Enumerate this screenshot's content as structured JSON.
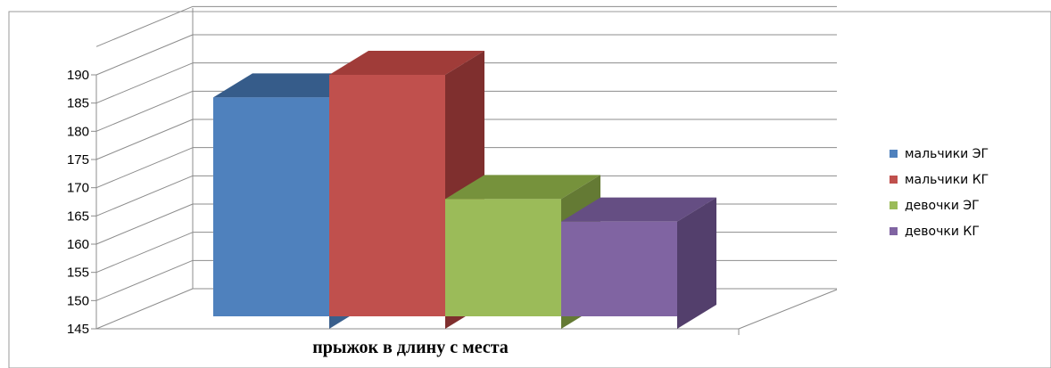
{
  "chart_data": {
    "type": "bar",
    "categories": [
      "прыжок в длину с места"
    ],
    "xlabel": "прыжок в длину с места",
    "ylim": [
      145,
      190
    ],
    "yticks": [
      145,
      150,
      155,
      160,
      165,
      170,
      175,
      180,
      185,
      190
    ],
    "grid": true,
    "legend_position": "right",
    "series": [
      {
        "name": "мальчики ЭГ",
        "values": [
          186
        ],
        "color": "#4F81BD",
        "dark": "#3A5F8C",
        "top": "#365C8A"
      },
      {
        "name": "мальчики КГ",
        "values": [
          190
        ],
        "color": "#C0504D",
        "dark": "#7F2F2E",
        "top": "#A03C39"
      },
      {
        "name": "девочки ЭГ",
        "values": [
          168
        ],
        "color": "#9BBB59",
        "dark": "#647A34",
        "top": "#76923C"
      },
      {
        "name": "девочки КГ",
        "values": [
          164
        ],
        "color": "#8064A2",
        "dark": "#533F6C",
        "top": "#654E83"
      }
    ]
  }
}
